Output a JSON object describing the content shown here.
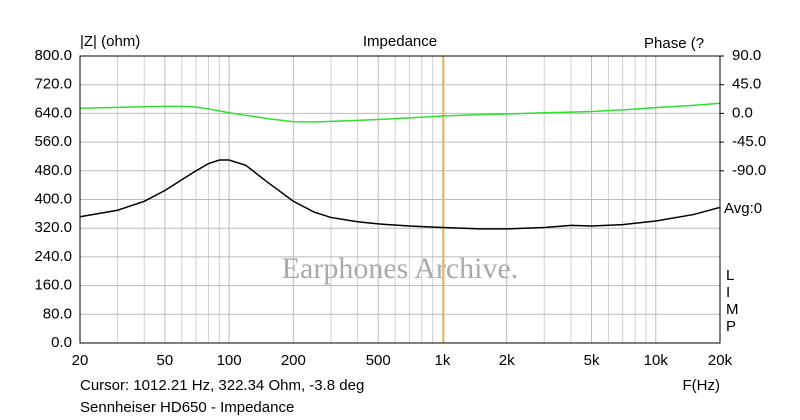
{
  "chart_data": {
    "type": "line",
    "title": "Impedance",
    "y_label": "|Z| (ohm)",
    "y2_label": "Phase (?",
    "x_label": "F(Hz)",
    "watermark": "Earphones Archive.",
    "caption": "Sennheiser HD650 - Impedance",
    "avg_label": "Avg:0",
    "side_letters": [
      "L",
      "I",
      "M",
      "P"
    ],
    "cursor": {
      "label": "Cursor: 1012.21 Hz, 322.34 Ohm, -3.8 deg",
      "x": 1012.21,
      "color": "#f0c060"
    },
    "x_log": true,
    "xlim": [
      20,
      20000
    ],
    "xticks": [
      20,
      50,
      100,
      200,
      500,
      {
        "value": 1000,
        "label": "1k"
      },
      {
        "value": 2000,
        "label": "2k"
      },
      {
        "value": 5000,
        "label": "5k"
      },
      {
        "value": 10000,
        "label": "10k"
      },
      {
        "value": 20000,
        "label": "20k"
      }
    ],
    "x_minor_grid": [
      30,
      40,
      60,
      70,
      80,
      90,
      300,
      400,
      600,
      700,
      800,
      900,
      3000,
      4000,
      6000,
      7000,
      8000,
      9000
    ],
    "ylim": [
      0,
      800
    ],
    "yticks": [
      {
        "value": 0,
        "label": "0.0"
      },
      {
        "value": 80,
        "label": "80.0"
      },
      {
        "value": 160,
        "label": "160.0"
      },
      {
        "value": 240,
        "label": "240.0"
      },
      {
        "value": 320,
        "label": "320.0"
      },
      {
        "value": 400,
        "label": "400.0"
      },
      {
        "value": 480,
        "label": "480.0"
      },
      {
        "value": 560,
        "label": "560.0"
      },
      {
        "value": 640,
        "label": "640.0"
      },
      {
        "value": 720,
        "label": "720.0"
      },
      {
        "value": 800,
        "label": "800.0"
      }
    ],
    "y2lim": [
      -360,
      90
    ],
    "y2ticks": [
      {
        "value": -90,
        "label": "-90.0"
      },
      {
        "value": -45,
        "label": "-45.0"
      },
      {
        "value": 0,
        "label": "0.0"
      },
      {
        "value": 45,
        "label": "45.0"
      },
      {
        "value": 90,
        "label": "90.0"
      }
    ],
    "grid": true,
    "x": [
      20,
      30,
      40,
      50,
      60,
      70,
      80,
      90,
      100,
      120,
      150,
      200,
      250,
      300,
      400,
      500,
      700,
      1000,
      1500,
      2000,
      3000,
      4000,
      5000,
      7000,
      10000,
      15000,
      20000
    ],
    "series": [
      {
        "name": "Impedance",
        "color": "#000000",
        "values": [
          352,
          370,
          395,
          425,
          455,
          480,
          500,
          510,
          510,
          495,
          450,
          395,
          365,
          350,
          338,
          332,
          326,
          322,
          318,
          318,
          322,
          328,
          326,
          330,
          340,
          358,
          378
        ]
      },
      {
        "name": "Phase",
        "color": "#33dd33",
        "axis": "y2",
        "values": [
          8,
          9.5,
          10.5,
          11,
          11,
          10,
          7,
          4,
          1,
          -3,
          -8,
          -13,
          -13.5,
          -12.5,
          -11,
          -9.5,
          -7,
          -4,
          -2,
          -1,
          1,
          2,
          3,
          5.5,
          9,
          12.5,
          16
        ]
      }
    ]
  }
}
